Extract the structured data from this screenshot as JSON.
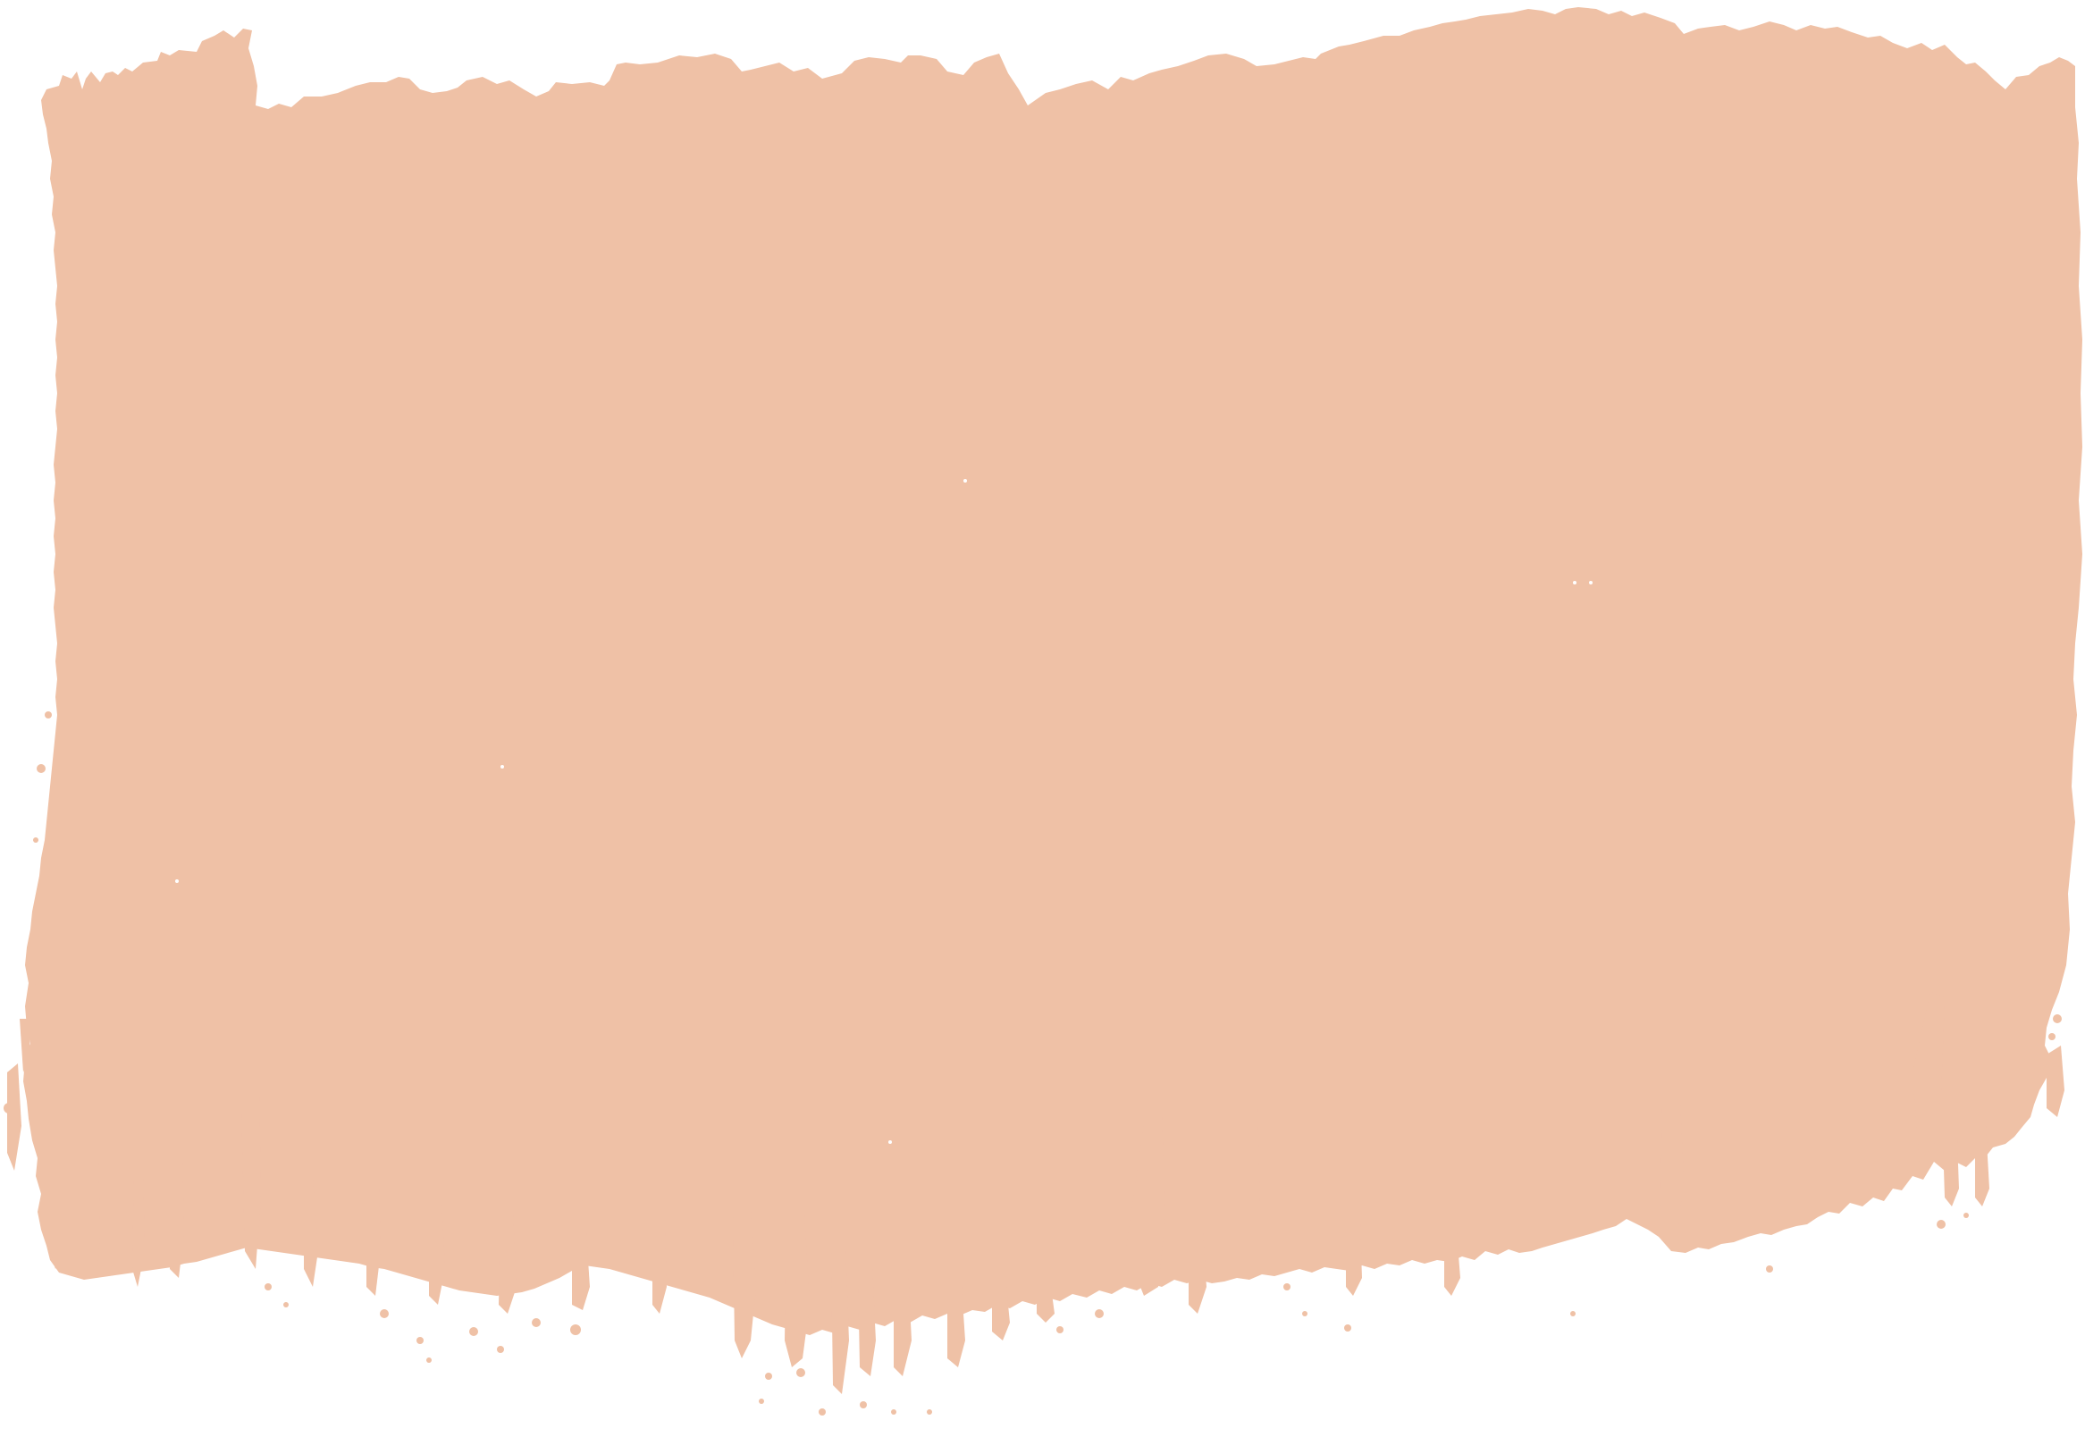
{
  "background_color": "#ffffff",
  "brush_stroke": {
    "fill_color": "#efc1a6",
    "style": "rough dry-brush swatch with ragged edges and dripping bottom"
  }
}
